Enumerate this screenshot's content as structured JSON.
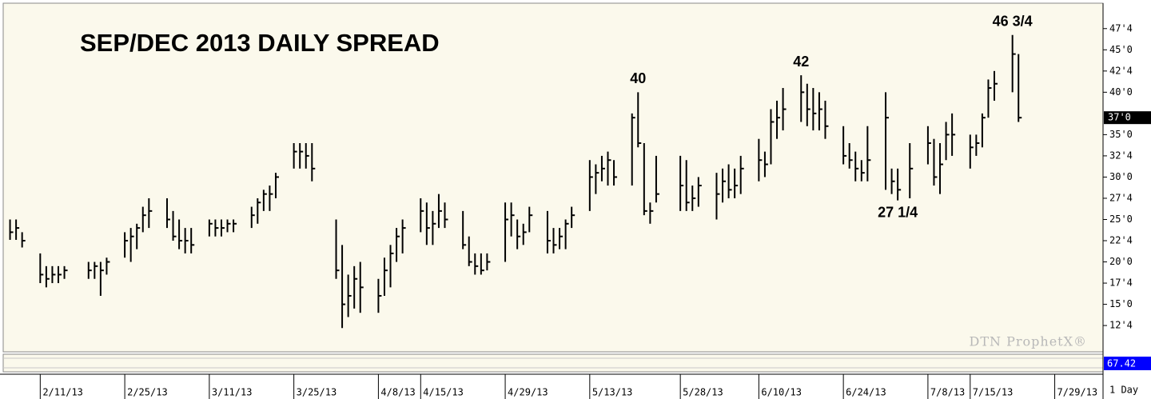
{
  "chart_data": {
    "type": "ohlc",
    "title": "SEP/DEC 2013 DAILY SPREAD",
    "watermark": "DTN ProphetX®",
    "interval_label": "1 Day",
    "last_label": "37'0",
    "indicator_label": "67.42",
    "indicator_color": "#0000ff",
    "color": "#000000",
    "x": [
      "2/6/13",
      "2/7/13",
      "2/8/13",
      "2/11/13",
      "2/12/13",
      "2/13/13",
      "2/14/13",
      "2/15/13",
      "2/19/13",
      "2/20/13",
      "2/21/13",
      "2/22/13",
      "2/25/13",
      "2/26/13",
      "2/27/13",
      "2/28/13",
      "3/1/13",
      "3/4/13",
      "3/5/13",
      "3/6/13",
      "3/7/13",
      "3/8/13",
      "3/11/13",
      "3/12/13",
      "3/13/13",
      "3/14/13",
      "3/15/13",
      "3/18/13",
      "3/19/13",
      "3/20/13",
      "3/21/13",
      "3/22/13",
      "3/25/13",
      "3/26/13",
      "3/27/13",
      "3/28/13",
      "4/1/13",
      "4/2/13",
      "4/3/13",
      "4/4/13",
      "4/5/13",
      "4/8/13",
      "4/9/13",
      "4/10/13",
      "4/11/13",
      "4/12/13",
      "4/15/13",
      "4/16/13",
      "4/17/13",
      "4/18/13",
      "4/19/13",
      "4/22/13",
      "4/23/13",
      "4/24/13",
      "4/25/13",
      "4/26/13",
      "4/29/13",
      "4/30/13",
      "5/1/13",
      "5/2/13",
      "5/3/13",
      "5/6/13",
      "5/7/13",
      "5/8/13",
      "5/9/13",
      "5/10/13",
      "5/13/13",
      "5/14/13",
      "5/15/13",
      "5/16/13",
      "5/17/13",
      "5/20/13",
      "5/21/13",
      "5/22/13",
      "5/23/13",
      "5/24/13",
      "5/28/13",
      "5/29/13",
      "5/30/13",
      "5/31/13",
      "6/3/13",
      "6/4/13",
      "6/5/13",
      "6/6/13",
      "6/7/13",
      "6/10/13",
      "6/11/13",
      "6/12/13",
      "6/13/13",
      "6/14/13",
      "6/17/13",
      "6/18/13",
      "6/19/13",
      "6/20/13",
      "6/21/13",
      "6/24/13",
      "6/25/13",
      "6/26/13",
      "6/27/13",
      "6/28/13",
      "7/1/13",
      "7/2/13",
      "7/3/13",
      "7/5/13",
      "7/8/13",
      "7/9/13",
      "7/10/13",
      "7/11/13",
      "7/12/13",
      "7/15/13",
      "7/16/13",
      "7/17/13",
      "7/18/13",
      "7/19/13",
      "7/22/13",
      "7/23/13"
    ],
    "high": [
      25,
      25,
      23.5,
      21,
      19.5,
      19.5,
      19.5,
      19.5,
      20,
      20,
      20,
      20.5,
      23.5,
      24,
      24.5,
      26.5,
      27.5,
      27.5,
      26,
      25,
      24,
      24,
      25,
      25,
      25,
      25,
      25,
      26.5,
      27.5,
      28.5,
      29,
      30.5,
      34,
      34,
      34,
      34,
      25,
      22,
      18.5,
      19.5,
      20,
      18,
      20.5,
      22,
      24,
      25,
      27.5,
      27,
      26,
      28,
      27,
      26,
      23,
      21,
      21,
      21,
      27,
      27,
      25,
      24.5,
      26.5,
      26,
      24,
      24,
      25,
      26.5,
      32,
      31.5,
      32.5,
      33,
      32,
      37.5,
      40,
      34,
      27,
      32.5,
      32.5,
      32,
      29,
      30,
      30.5,
      31,
      31.5,
      31,
      32.5,
      34.5,
      33,
      38,
      39,
      40.5,
      42,
      41,
      40.5,
      40,
      39,
      36,
      34,
      33,
      32,
      36,
      40,
      31,
      31,
      34,
      36,
      34.5,
      34,
      36.5,
      37.5,
      35,
      35,
      37.5,
      41.5,
      42.5,
      46.75,
      44.5
    ],
    "low": [
      22.6,
      22.6,
      21.7,
      17.5,
      17,
      17.5,
      17.5,
      18,
      18,
      18,
      16,
      18.5,
      20.5,
      20,
      21.5,
      23.5,
      24,
      24,
      22.5,
      21.5,
      21,
      21,
      23,
      23,
      23,
      23.5,
      23.5,
      24,
      24.5,
      26,
      26,
      27.5,
      31,
      31,
      31,
      29.5,
      18,
      12.2,
      13.5,
      14.5,
      14,
      14,
      16,
      17,
      20,
      21,
      23.5,
      22,
      22,
      24,
      24,
      21.5,
      19.5,
      18.5,
      18.5,
      19,
      20,
      23,
      21.5,
      22,
      23.5,
      21,
      21,
      21.5,
      21.5,
      24,
      26,
      28,
      29.5,
      29,
      29,
      29,
      33.5,
      25.5,
      24.5,
      27,
      26,
      26,
      26,
      26.5,
      25,
      27,
      27.5,
      27.5,
      28,
      29.5,
      30,
      31.5,
      34.5,
      35.5,
      36.5,
      36,
      35.5,
      35.5,
      34.5,
      31.5,
      31,
      29.5,
      29.5,
      29.5,
      28.5,
      28,
      27.25,
      27.5,
      31.5,
      29,
      28,
      32,
      32.5,
      31,
      32.5,
      33.5,
      37,
      39,
      40,
      36.5
    ],
    "close": [
      23.5,
      24,
      22.5,
      18.5,
      18,
      18.5,
      18.5,
      19,
      19,
      19.5,
      19,
      20,
      22.5,
      23,
      24,
      25.5,
      26,
      25,
      23,
      22.5,
      22.5,
      22,
      24.5,
      24,
      24,
      24.5,
      24.5,
      25.5,
      27,
      28,
      28,
      30,
      33,
      33,
      32.5,
      31,
      19,
      15,
      16,
      18,
      17,
      16,
      19,
      21,
      23,
      24,
      26,
      24,
      24.5,
      26,
      25,
      22,
      20,
      19.5,
      19,
      20,
      25,
      25.5,
      23,
      23.5,
      25.5,
      22.5,
      22,
      23,
      24.5,
      25.5,
      30,
      30.5,
      31,
      32,
      30,
      37,
      34,
      26,
      26,
      28,
      29,
      27,
      27.5,
      29,
      28,
      29.5,
      28.5,
      29,
      31,
      32,
      31.5,
      36.5,
      37,
      38,
      40,
      38,
      37.5,
      38,
      36,
      32.5,
      32,
      31,
      30.5,
      32,
      37,
      29.5,
      28.5,
      31,
      34,
      30,
      31.5,
      35,
      35,
      33.5,
      34,
      37,
      40.5,
      41,
      44.5,
      37
    ],
    "xlim": [
      "2/5/13",
      "8/6/13"
    ],
    "xticks": [
      "2/11/13",
      "2/25/13",
      "3/11/13",
      "3/25/13",
      "4/8/13",
      "4/15/13",
      "4/29/13",
      "5/13/13",
      "5/28/13",
      "6/10/13",
      "6/24/13",
      "7/8/13",
      "7/15/13",
      "7/29/13"
    ],
    "ylim": [
      9.4,
      50.4
    ],
    "yticks": [
      {
        "value": 12.5,
        "label": "12'4"
      },
      {
        "value": 15,
        "label": "15'0"
      },
      {
        "value": 17.5,
        "label": "17'4"
      },
      {
        "value": 20,
        "label": "20'0"
      },
      {
        "value": 22.5,
        "label": "22'4"
      },
      {
        "value": 25,
        "label": "25'0"
      },
      {
        "value": 27.5,
        "label": "27'4"
      },
      {
        "value": 30,
        "label": "30'0"
      },
      {
        "value": 32.5,
        "label": "32'4"
      },
      {
        "value": 35,
        "label": "35'0"
      },
      {
        "value": 40,
        "label": "40'0"
      },
      {
        "value": 42.5,
        "label": "42'4"
      },
      {
        "value": 45,
        "label": "45'0"
      },
      {
        "value": 47.5,
        "label": "47'4"
      }
    ],
    "annotations": [
      {
        "text": "40",
        "x": "5/21/13",
        "y": 40,
        "position": "above"
      },
      {
        "text": "42",
        "x": "6/17/13",
        "y": 42,
        "position": "above"
      },
      {
        "text": "46 3/4",
        "x": "7/22/13",
        "y": 46.75,
        "position": "above"
      },
      {
        "text": "27 1/4",
        "x": "7/3/13",
        "y": 27.25,
        "position": "below"
      }
    ]
  }
}
